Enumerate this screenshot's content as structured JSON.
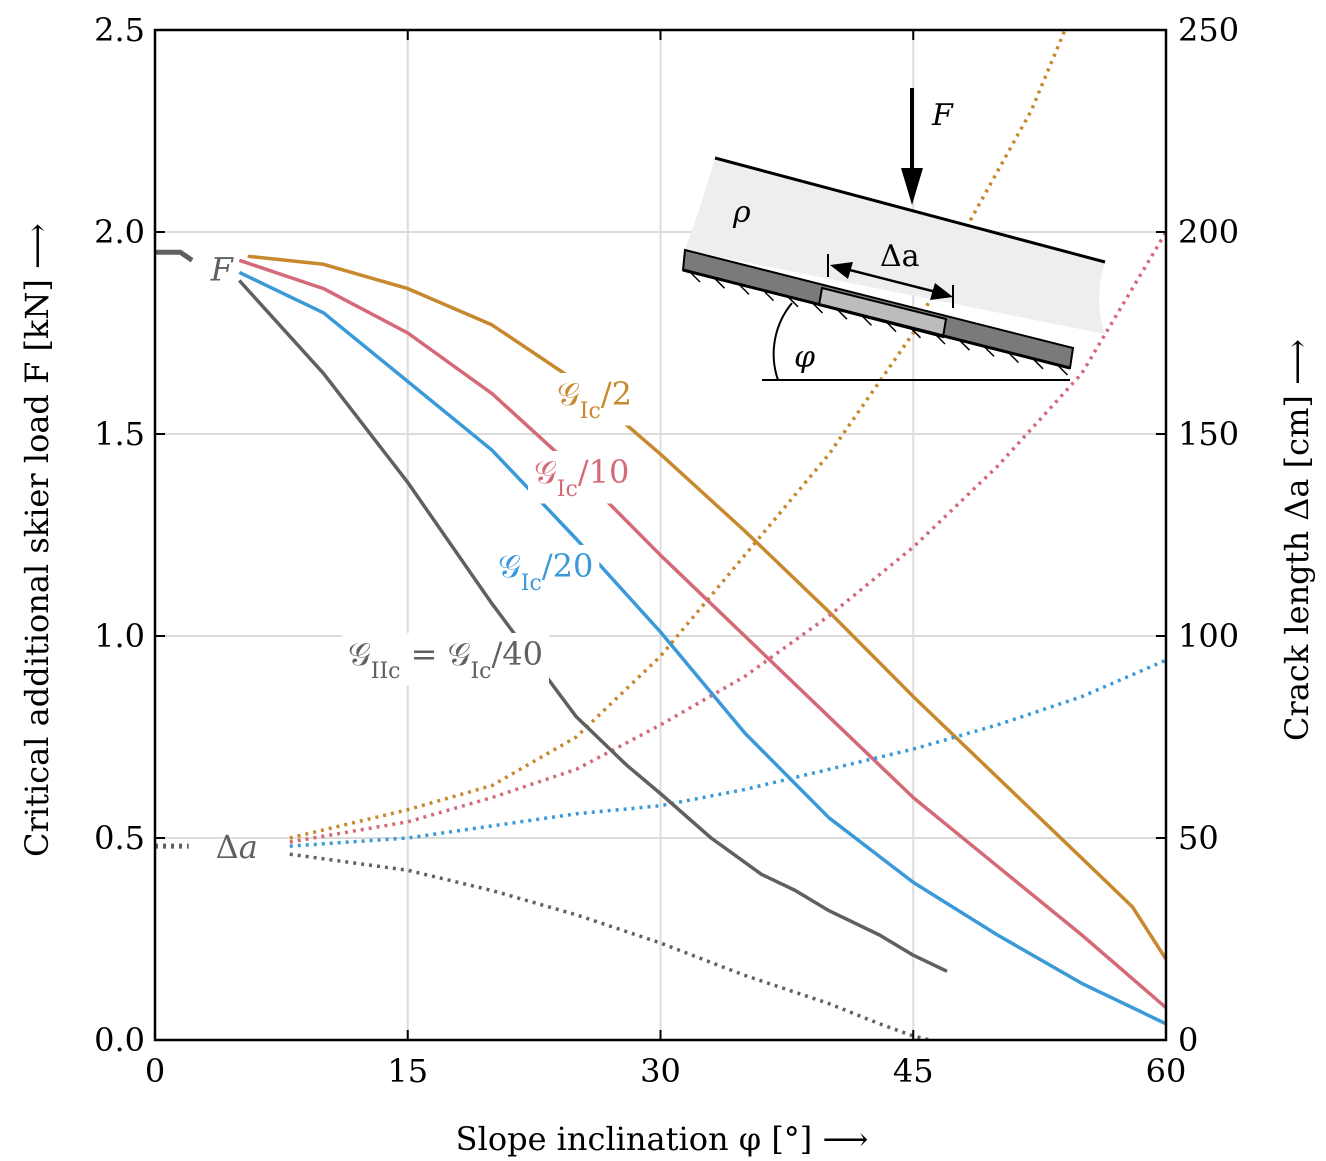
{
  "chart_data": {
    "type": "line",
    "xlabel": "Slope inclination φ [°] ⟶",
    "ylabel_left": "Critical additional skier load F [kN] ⟶",
    "ylabel_right": "Crack length Δa [cm] ⟶",
    "xlim": [
      0,
      60
    ],
    "ylim_left": [
      0,
      2.5
    ],
    "ylim_right": [
      0,
      250
    ],
    "xticks": [
      "0",
      "15",
      "30",
      "45",
      "60"
    ],
    "yticks_left": [
      "0.0",
      "0.5",
      "1.0",
      "1.5",
      "2.0",
      "2.5"
    ],
    "yticks_right": [
      "0",
      "50",
      "100",
      "150",
      "200",
      "250"
    ],
    "grid": true,
    "marker_labels": {
      "force": "F",
      "crack": "Δa"
    },
    "series": [
      {
        "name": "𝒢Ic/2",
        "color": "#c8882e",
        "label_html": "𝒢<tspan baseline-shift='sub' font-size='22'>Ic</tspan>/2",
        "load": {
          "x": [
            5.5,
            10,
            15,
            20,
            25,
            30,
            35,
            40,
            45,
            50,
            55,
            58,
            60
          ],
          "y": [
            1.94,
            1.92,
            1.86,
            1.77,
            1.63,
            1.45,
            1.26,
            1.06,
            0.85,
            0.65,
            0.45,
            0.33,
            0.2
          ]
        },
        "crack": {
          "x": [
            8,
            15,
            20,
            25,
            30,
            35,
            40,
            45,
            48,
            52,
            54
          ],
          "y": [
            50,
            57,
            63,
            75,
            95,
            120,
            145,
            175,
            200,
            230,
            250
          ]
        }
      },
      {
        "name": "𝒢Ic/10",
        "color": "#d46a78",
        "label_html": "𝒢<tspan baseline-shift='sub' font-size='22'>Ic</tspan>/10",
        "load": {
          "x": [
            5,
            10,
            15,
            20,
            25,
            30,
            35,
            40,
            45,
            50,
            55,
            60
          ],
          "y": [
            1.93,
            1.86,
            1.75,
            1.6,
            1.41,
            1.2,
            1.0,
            0.8,
            0.6,
            0.43,
            0.26,
            0.08
          ]
        },
        "crack": {
          "x": [
            8,
            15,
            20,
            25,
            30,
            35,
            40,
            45,
            50,
            55,
            60
          ],
          "y": [
            49,
            54,
            60,
            67,
            78,
            90,
            105,
            122,
            142,
            165,
            200
          ]
        }
      },
      {
        "name": "𝒢Ic/20",
        "color": "#3a9ad9",
        "label_html": "𝒢<tspan baseline-shift='sub' font-size='22'>Ic</tspan>/20",
        "load": {
          "x": [
            5,
            10,
            15,
            20,
            25,
            30,
            35,
            40,
            45,
            50,
            55,
            60
          ],
          "y": [
            1.9,
            1.8,
            1.63,
            1.46,
            1.24,
            1.01,
            0.76,
            0.55,
            0.39,
            0.26,
            0.14,
            0.04
          ]
        },
        "crack": {
          "x": [
            8,
            15,
            20,
            25,
            30,
            35,
            40,
            45,
            50,
            55,
            60
          ],
          "y": [
            48,
            50,
            53,
            56,
            58,
            62,
            67,
            72,
            78,
            85,
            94
          ]
        }
      },
      {
        "name": "𝒢IIc = 𝒢Ic/40",
        "color": "#606060",
        "label_html": "𝒢<tspan baseline-shift='sub' font-size='22'>IIc</tspan> = 𝒢<tspan baseline-shift='sub' font-size='22'>Ic</tspan>/40",
        "load": {
          "x": [
            5,
            10,
            15,
            20,
            25,
            28,
            30,
            33,
            36,
            38,
            40,
            43,
            45,
            47
          ],
          "y": [
            1.88,
            1.65,
            1.38,
            1.08,
            0.8,
            0.68,
            0.61,
            0.5,
            0.41,
            0.37,
            0.32,
            0.26,
            0.21,
            0.17
          ]
        },
        "crack": {
          "x": [
            8,
            15,
            20,
            25,
            30,
            35,
            40,
            43,
            45,
            46
          ],
          "y": [
            46,
            42,
            37,
            31,
            24,
            16,
            9,
            4,
            1,
            0
          ]
        }
      }
    ],
    "annotations": [
      {
        "text": "F",
        "role": "load-curve-marker"
      },
      {
        "text": "Δa",
        "role": "crack-curve-marker"
      }
    ],
    "inset": {
      "labels": {
        "force": "F",
        "density": "ρ",
        "crack": "Δa",
        "angle": "φ"
      }
    }
  }
}
